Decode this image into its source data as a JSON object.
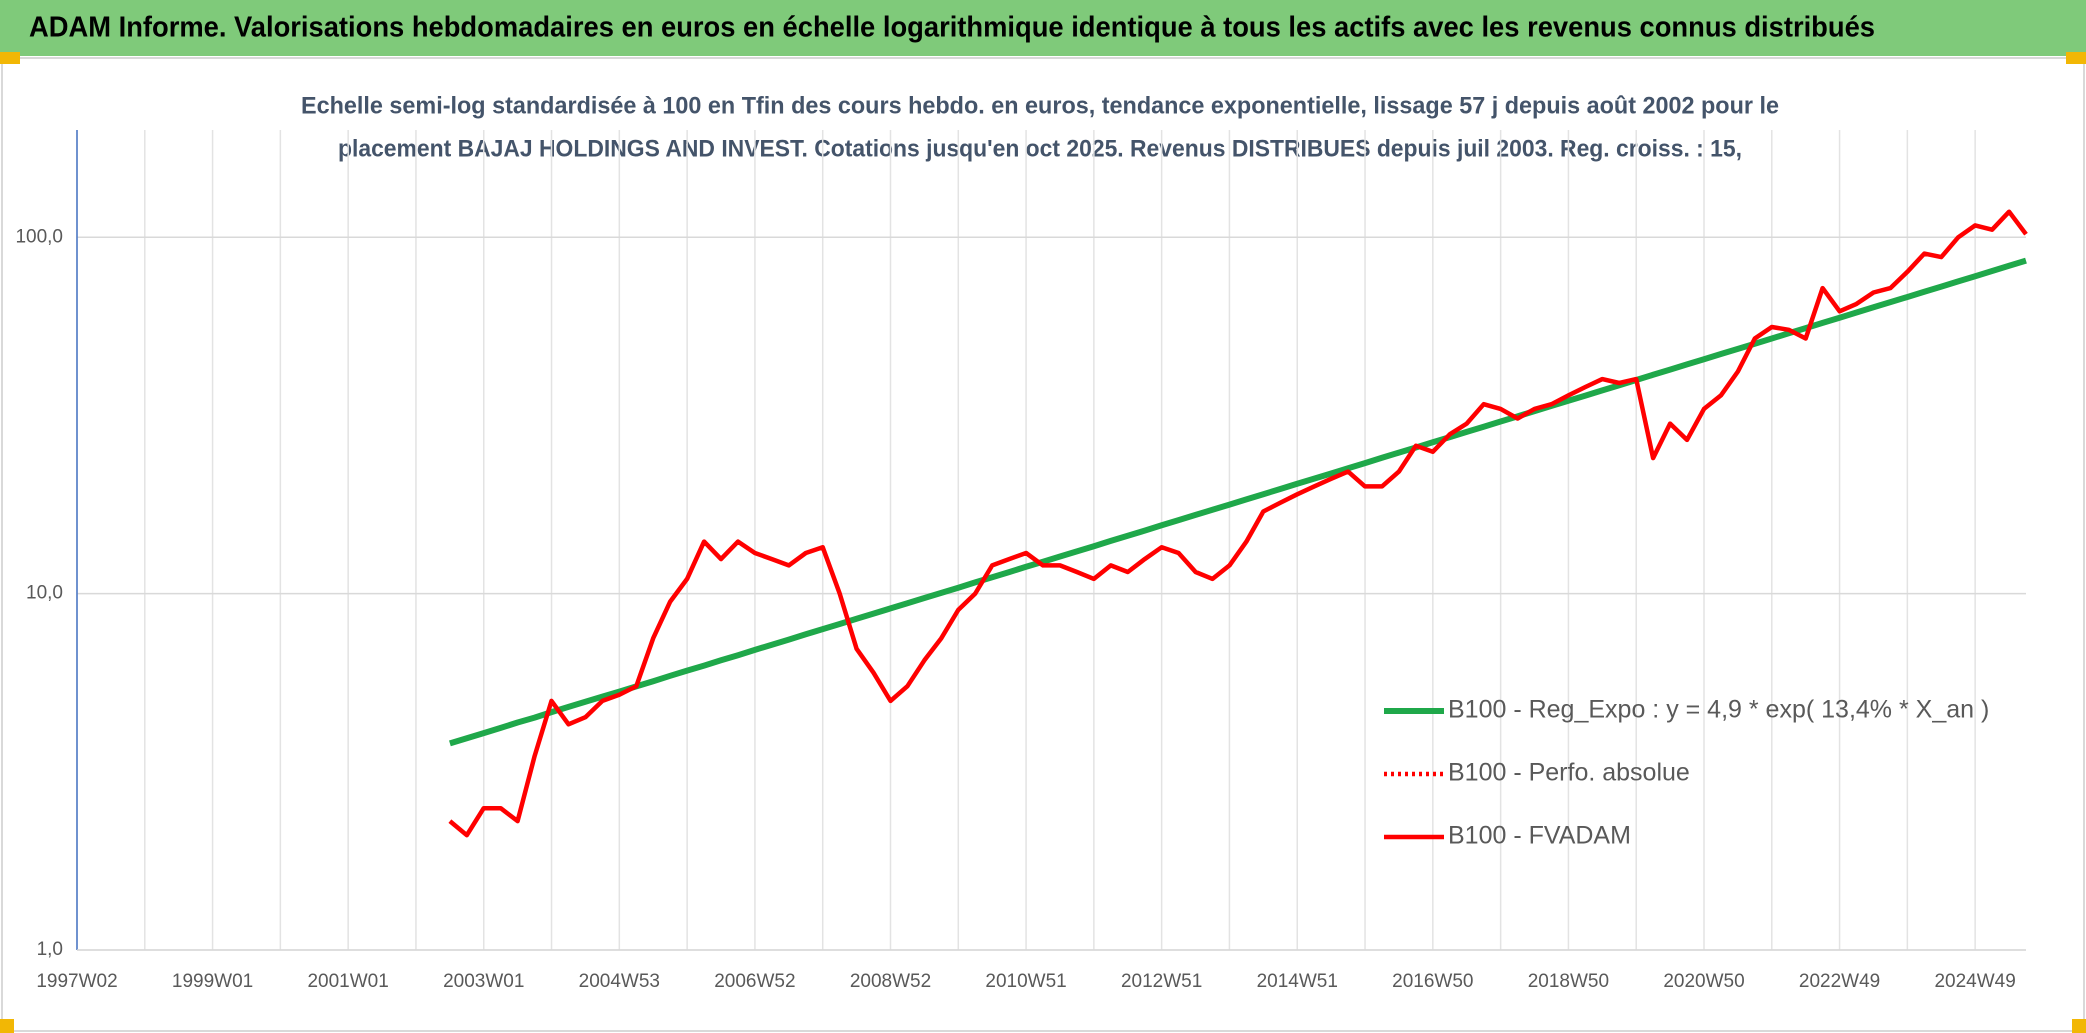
{
  "chart_data": {
    "type": "line",
    "title": "ADAM Informe. Valorisations hebdomadaires en euros en échelle logarithmique identique à tous les actifs avec les revenus connus distribués",
    "subtitle": [
      "Echelle semi-log standardisée à 100 en Tfin des cours hebdo. en euros, tendance exponentielle, lissage 57 j depuis août 2002 pour le",
      "placement BAJAJ HOLDINGS AND INVEST. Cotations jusqu'en oct 2025. Revenus DISTRIBUES depuis juil 2003. Reg. croiss. : 15,"
    ],
    "categories": [
      "1997W02",
      null,
      null,
      null,
      null,
      null,
      null,
      null,
      "1999W01",
      null,
      null,
      null,
      null,
      null,
      null,
      null,
      "2001W01",
      null,
      null,
      null,
      null,
      null,
      null,
      null,
      "2003W01",
      null,
      null,
      null,
      null,
      null,
      null,
      null,
      "2004W53",
      null,
      null,
      null,
      null,
      null,
      null,
      null,
      "2006W52",
      null,
      null,
      null,
      null,
      null,
      null,
      null,
      "2008W52",
      null,
      null,
      null,
      null,
      null,
      null,
      null,
      "2010W51",
      null,
      null,
      null,
      null,
      null,
      null,
      null,
      "2012W51",
      null,
      null,
      null,
      null,
      null,
      null,
      null,
      "2014W51",
      null,
      null,
      null,
      null,
      null,
      null,
      null,
      "2016W50",
      null,
      null,
      null,
      null,
      null,
      null,
      null,
      "2018W50",
      null,
      null,
      null,
      null,
      null,
      null,
      null,
      "2020W50",
      null,
      null,
      null,
      null,
      null,
      null,
      null,
      "2022W49",
      null,
      null,
      null,
      null,
      null,
      null,
      null,
      "2024W49",
      null,
      null,
      null
    ],
    "series": [
      {
        "name": "B100 - Reg_Expo : y = 4,9 * exp( 13,4% *  X_an )",
        "color": "#1fa84a",
        "style": "solid",
        "values": [
          null,
          null,
          null,
          null,
          null,
          null,
          null,
          null,
          null,
          null,
          null,
          null,
          null,
          null,
          null,
          null,
          null,
          null,
          null,
          null,
          null,
          null,
          3.8,
          3.93,
          4.06,
          4.2,
          4.35,
          4.49,
          4.65,
          4.81,
          4.97,
          5.14,
          5.31,
          5.49,
          5.68,
          5.88,
          6.08,
          6.28,
          6.5,
          6.72,
          6.95,
          7.19,
          7.43,
          7.69,
          7.95,
          8.22,
          8.5,
          8.79,
          9.09,
          9.4,
          9.72,
          10.05,
          10.39,
          10.75,
          11.11,
          11.49,
          11.89,
          12.29,
          12.71,
          13.14,
          13.59,
          14.06,
          14.54,
          15.03,
          15.55,
          16.08,
          16.63,
          17.19,
          17.78,
          18.39,
          19.01,
          19.66,
          20.33,
          21.03,
          21.74,
          22.48,
          23.25,
          24.05,
          24.87,
          25.71,
          26.59,
          27.5,
          28.44,
          29.41,
          30.41,
          31.44,
          32.52,
          33.63,
          34.77,
          35.96,
          37.19,
          38.45,
          39.77,
          41.12,
          42.52,
          43.97,
          45.47,
          47.03,
          48.63,
          50.29,
          52.0,
          53.78,
          55.61,
          57.5,
          59.46,
          61.49,
          63.59,
          65.76,
          68.0,
          70.32,
          72.72,
          75.2,
          77.76,
          80.41,
          83.15,
          85.99
        ]
      },
      {
        "name": "B100 - Perfo. absolue",
        "color": "#ff0000",
        "style": "dotted",
        "values": [
          null,
          null,
          null,
          null,
          null,
          null,
          null,
          null,
          null,
          null,
          null,
          null,
          null,
          null,
          null,
          null,
          null,
          null,
          null,
          null,
          null,
          null,
          null,
          null,
          null,
          null,
          null,
          null,
          null,
          null,
          null,
          null,
          null,
          null,
          null,
          null,
          null,
          null,
          null,
          null,
          null,
          null,
          null,
          null,
          null,
          null,
          null,
          null,
          null,
          null,
          null,
          null,
          null,
          null,
          null,
          null,
          null,
          null,
          null,
          null,
          null,
          null,
          null,
          null,
          null,
          null,
          null,
          null,
          null,
          null,
          null,
          null,
          null,
          null,
          null,
          null,
          null,
          null,
          null,
          null,
          null,
          null,
          null,
          null,
          null,
          null,
          null,
          null,
          null,
          null,
          null,
          null,
          null,
          null,
          null,
          null,
          null,
          null,
          null,
          null,
          null,
          null,
          null,
          null,
          null,
          null,
          null,
          null,
          null,
          null,
          null,
          null,
          null,
          null,
          null,
          null
        ]
      },
      {
        "name": "B100 - FVADAM",
        "color": "#ff0000",
        "style": "solid",
        "values": [
          null,
          null,
          null,
          null,
          null,
          null,
          null,
          null,
          null,
          null,
          null,
          null,
          null,
          null,
          null,
          null,
          null,
          null,
          null,
          null,
          null,
          null,
          2.3,
          2.1,
          2.5,
          2.5,
          2.3,
          3.5,
          5.0,
          4.3,
          4.5,
          5.0,
          5.2,
          5.5,
          7.5,
          9.5,
          11,
          14,
          12.5,
          14,
          13,
          12.5,
          12,
          13,
          13.5,
          10,
          7,
          6,
          5,
          5.5,
          6.5,
          7.5,
          9,
          10,
          12,
          12.5,
          13,
          12,
          12,
          11.5,
          11,
          12,
          11.5,
          12.5,
          13.5,
          13,
          11.5,
          11,
          12,
          14,
          17,
          18,
          19,
          20,
          21,
          22,
          20,
          20,
          22,
          26,
          25,
          28,
          30,
          34,
          33,
          31,
          33,
          34,
          36,
          38,
          40,
          39,
          40,
          24,
          30,
          27,
          33,
          36,
          42,
          52,
          56,
          55,
          52,
          72,
          62,
          65,
          70,
          72,
          80,
          90,
          88,
          100,
          108,
          105,
          118,
          102
        ]
      }
    ],
    "log_y": true,
    "ylim": [
      1,
      200
    ],
    "yticks": [
      {
        "value": 1,
        "label": "1,0"
      },
      {
        "value": 10,
        "label": "10,0"
      },
      {
        "value": 100,
        "label": "100,0"
      }
    ],
    "grid": true,
    "legend": "right"
  }
}
